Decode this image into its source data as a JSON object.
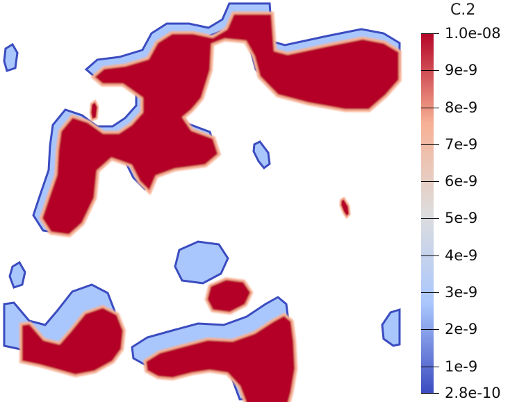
{
  "chart_data": {
    "type": "heatmap",
    "title": "",
    "colorbar": {
      "title": "C.2",
      "range": [
        2.8e-10,
        1e-08
      ],
      "scale": "linear",
      "colormap": "coolwarm",
      "colors": [
        "#3b4cc0",
        "#aac7fd",
        "#dddddd",
        "#f7b194",
        "#b40426"
      ],
      "ticks": [
        {
          "value": 1e-08,
          "label": "1.0e-08"
        },
        {
          "value": 9e-09,
          "label": "9e-9"
        },
        {
          "value": 8e-09,
          "label": "8e-9"
        },
        {
          "value": 7e-09,
          "label": "7e-9"
        },
        {
          "value": 6e-09,
          "label": "6e-9"
        },
        {
          "value": 5e-09,
          "label": "5e-9"
        },
        {
          "value": 4e-09,
          "label": "4e-9"
        },
        {
          "value": 3e-09,
          "label": "3e-9"
        },
        {
          "value": 2e-09,
          "label": "2e-9"
        },
        {
          "value": 1e-09,
          "label": "1e-9"
        },
        {
          "value": 2.8e-10,
          "label": "2.8e-10"
        }
      ]
    },
    "fill_color": "#b40426",
    "edge_color": "#3b4cc0",
    "background": "#ffffff"
  }
}
